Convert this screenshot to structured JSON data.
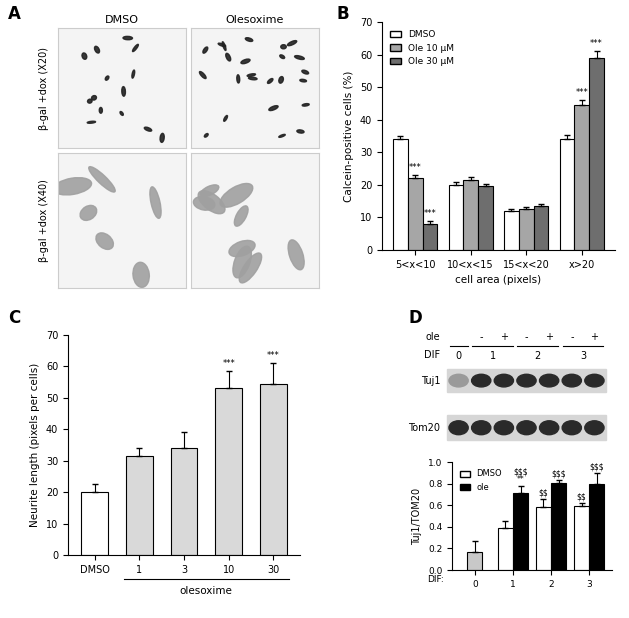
{
  "chart_data": [
    {
      "type": "bar",
      "panel": "B",
      "categories": [
        "5<x<10",
        "10<x<15",
        "15<x<20",
        "x>20"
      ],
      "series": [
        {
          "name": "DMSO",
          "color": "#ffffff",
          "values": [
            34,
            20,
            12,
            34
          ],
          "errors": [
            1,
            0.8,
            0.6,
            1.2
          ]
        },
        {
          "name": "Ole 10 µM",
          "color": "#a6a6a6",
          "values": [
            22,
            21.5,
            12.5,
            44.5
          ],
          "errors": [
            1,
            0.8,
            0.6,
            1.5
          ]
        },
        {
          "name": "Ole 30 µM",
          "color": "#6e6e6e",
          "values": [
            8,
            19.5,
            13.5,
            59
          ],
          "errors": [
            0.8,
            0.7,
            0.7,
            2
          ]
        }
      ],
      "xlabel": "cell area (pixels)",
      "ylabel": "Calcein-positive cells (%)",
      "ylim": [
        0,
        70
      ],
      "yticks": [
        0,
        10,
        20,
        30,
        40,
        50,
        60,
        70
      ],
      "legend": "upper left",
      "annotations": [
        {
          "text": "***",
          "category": 0,
          "series": 1
        },
        {
          "text": "***",
          "category": 0,
          "series": 2
        },
        {
          "text": "***",
          "category": 3,
          "series": 1
        },
        {
          "text": "***",
          "category": 3,
          "series": 2
        }
      ]
    },
    {
      "type": "bar",
      "panel": "C",
      "categories": [
        "DMSO",
        "1",
        "3",
        "10",
        "30"
      ],
      "values": [
        20,
        31.5,
        34,
        53,
        54.5
      ],
      "errors": [
        2.5,
        2.5,
        5,
        5.5,
        6.5
      ],
      "colors": [
        "#ffffff",
        "#d9d9d9",
        "#d9d9d9",
        "#d9d9d9",
        "#d9d9d9"
      ],
      "group_label": "olesoxime",
      "ylabel": "Neurite length (pixels per cells)",
      "ylim": [
        0,
        70
      ],
      "yticks": [
        0,
        10,
        20,
        30,
        40,
        50,
        60,
        70
      ],
      "annotations": [
        {
          "text": "***",
          "category": 3
        },
        {
          "text": "***",
          "category": 4
        }
      ]
    },
    {
      "type": "bar",
      "categories": [
        "0",
        "1",
        "2",
        "3"
      ],
      "series": [
        {
          "name": "DMSO",
          "color": "#ffffff",
          "colors": [
            "#c8c8c8",
            "#ffffff",
            "#ffffff",
            "#ffffff"
          ],
          "values": [
            0.17,
            0.39,
            0.58,
            0.59
          ],
          "errors": [
            0.1,
            0.06,
            0.08,
            0.03
          ]
        },
        {
          "name": "ole",
          "color": "#000000",
          "values": [
            null,
            0.71,
            0.81,
            0.8
          ],
          "errors": [
            null,
            0.07,
            0.02,
            0.1
          ]
        }
      ],
      "xlabel": "DIF:",
      "ylabel": "Tuj1/TOM20",
      "ylim": [
        0,
        1.0
      ],
      "yticks": [
        {
          "value": 0,
          "label": "0.0"
        },
        {
          "value": 0.2,
          "label": "0.2"
        },
        {
          "value": 0.4,
          "label": "0.4"
        },
        {
          "value": 0.6,
          "label": "0.6"
        },
        {
          "value": 0.8,
          "label": "0.8"
        },
        {
          "value": 1.0,
          "label": "1.0"
        }
      ],
      "legend": "upper left",
      "annotations": [
        {
          "text": "**",
          "category": 1,
          "series": 1
        },
        {
          "text": "$$$",
          "category": 1,
          "series": 1
        },
        {
          "text": "$$",
          "category": 2,
          "series": 0
        },
        {
          "text": "$$$",
          "category": 2,
          "series": 1
        },
        {
          "text": "$$",
          "category": 3,
          "series": 0
        },
        {
          "text": "$$$",
          "category": 3,
          "series": 1
        }
      ]
    }
  ],
  "panel_a": {
    "panel": "A",
    "columns": [
      "DMSO",
      "Olesoxime"
    ],
    "rows": [
      "β-gal +dox (X20)",
      "β-gal +dox (X40)"
    ]
  },
  "blot": {
    "panel": "D",
    "row_labels": [
      "ole",
      "DIF"
    ],
    "groups": [
      {
        "dif": "0",
        "ole": []
      },
      {
        "dif": "1",
        "ole": [
          "-",
          "+"
        ]
      },
      {
        "dif": "2",
        "ole": [
          "-",
          "+"
        ]
      },
      {
        "dif": "3",
        "ole": [
          "-",
          "+"
        ]
      }
    ],
    "bands": [
      "Tuj1",
      "Tom20"
    ]
  }
}
